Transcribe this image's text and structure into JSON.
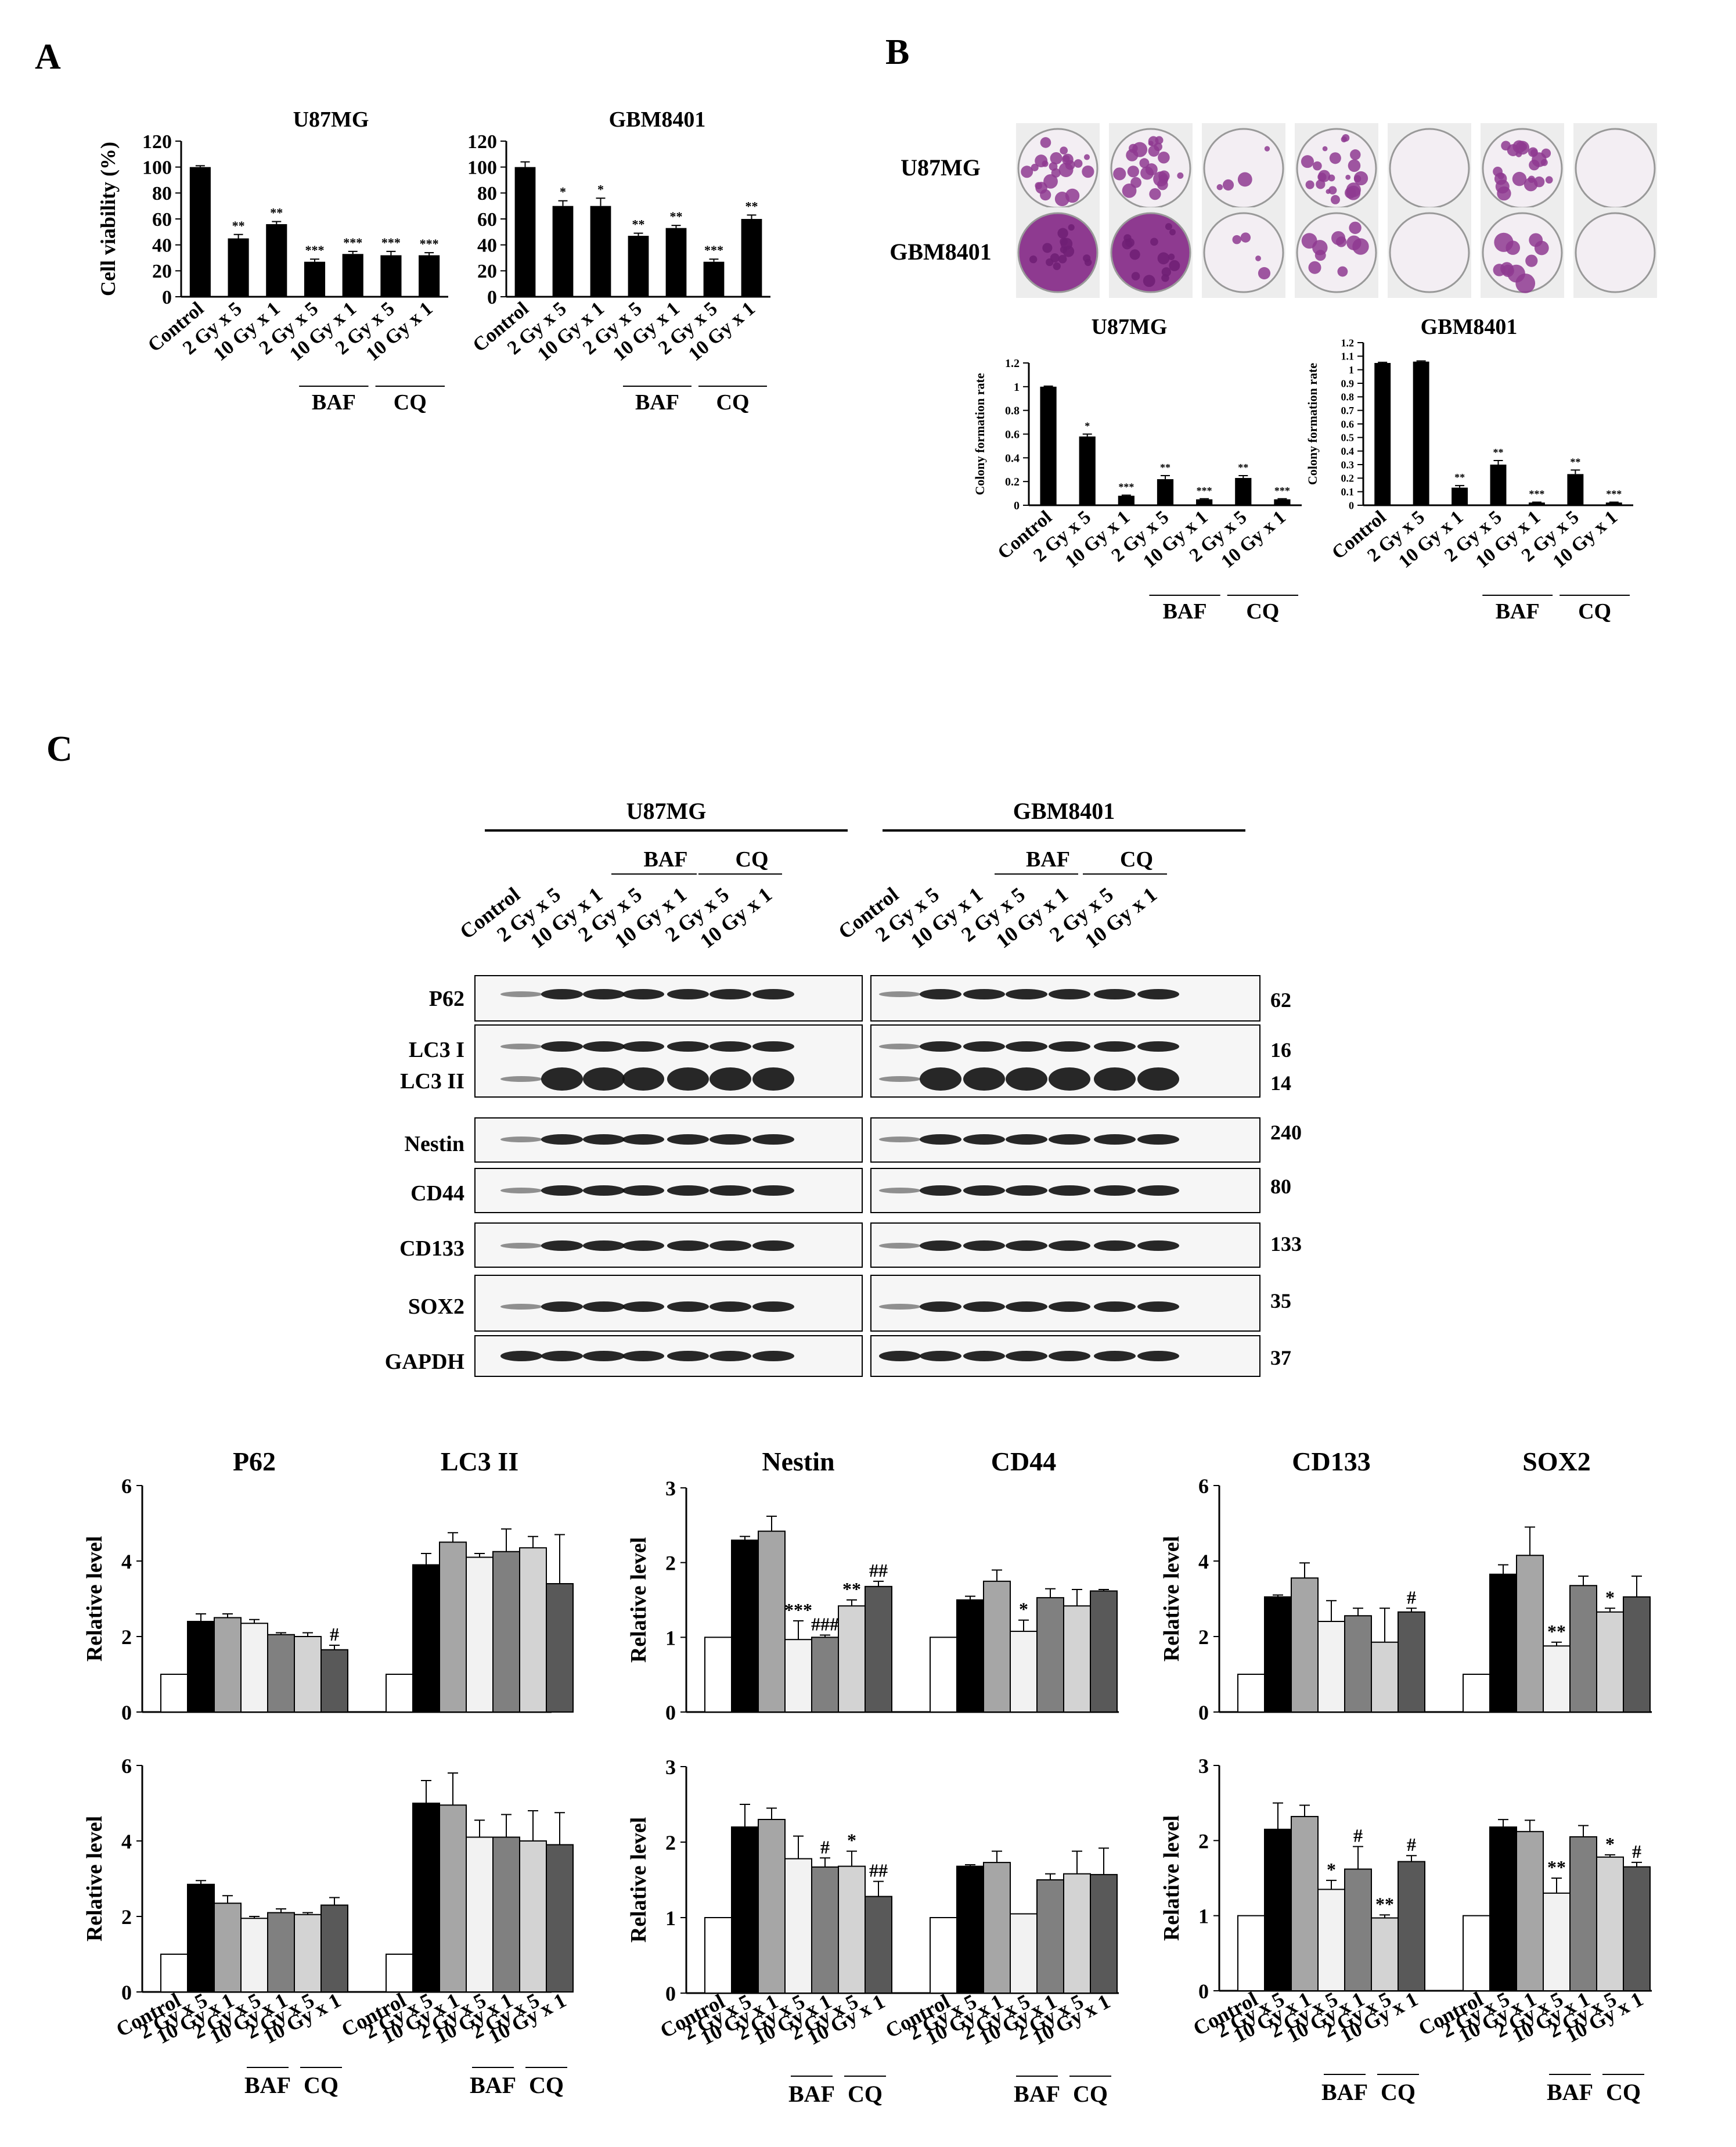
{
  "panel_labels": [
    "A",
    "B",
    "C"
  ],
  "conditions": [
    "Control",
    "2 Gy x 5",
    "10 Gy x 1",
    "2 Gy x 5",
    "10 Gy x 1",
    "2 Gy x 5",
    "10 Gy x 1"
  ],
  "groups": [
    "BAF",
    "CQ"
  ],
  "cell_lines": [
    "U87MG",
    "GBM8401"
  ],
  "panel_b_rows": [
    "U87MG",
    "GBM8401"
  ],
  "panel_b_dishes": [
    [
      "sparse",
      "sparse",
      "few",
      "sparse",
      "none",
      "sparse",
      "none"
    ],
    [
      "dense",
      "dense",
      "few",
      "colonies",
      "none",
      "colonies",
      "none"
    ]
  ],
  "western": {
    "proteins": [
      "P62",
      "LC3  I",
      "LC3 II",
      "Nestin",
      "CD44",
      "CD133",
      "SOX2",
      "GAPDH"
    ],
    "mw": [
      "62",
      "16",
      "14",
      "240",
      "80",
      "133",
      "35",
      "37"
    ]
  },
  "colors": {
    "series": [
      "#ffffff",
      "#000000",
      "#a6a6a6",
      "#f2f2f2",
      "#808080",
      "#d3d3d3",
      "#595959"
    ],
    "stain": "#8e3a90"
  },
  "chart_data": [
    {
      "id": "A1",
      "type": "bar",
      "title": "U87MG",
      "ylabel": "Cell viability (%)",
      "ylim": [
        0,
        120
      ],
      "yticks": [
        0,
        20,
        40,
        60,
        80,
        100,
        120
      ],
      "categories": [
        "Control",
        "2 Gy x 5",
        "10 Gy x 1",
        "2 Gy x 5",
        "10 Gy x 1",
        "2 Gy x 5",
        "10 Gy x 1"
      ],
      "values": [
        100,
        45,
        56,
        27,
        33,
        32,
        32
      ],
      "errors": [
        1,
        3,
        2,
        2,
        2,
        3,
        2
      ],
      "annotations": [
        "",
        "**",
        "**",
        "***",
        "***",
        "***",
        "***"
      ],
      "bar_color": "black"
    },
    {
      "id": "A2",
      "type": "bar",
      "title": "GBM8401",
      "ylabel": "",
      "ylim": [
        0,
        120
      ],
      "yticks": [
        0,
        20,
        40,
        60,
        80,
        100,
        120
      ],
      "categories": [
        "Control",
        "2 Gy x 5",
        "10 Gy x 1",
        "2 Gy x 5",
        "10 Gy x 1",
        "2 Gy x 5",
        "10 Gy x 1"
      ],
      "values": [
        100,
        70,
        70,
        47,
        53,
        27,
        60
      ],
      "errors": [
        4,
        4,
        6,
        2,
        2,
        2,
        3
      ],
      "annotations": [
        "",
        "*",
        "*",
        "**",
        "**",
        "***",
        "**"
      ],
      "bar_color": "black"
    },
    {
      "id": "B1",
      "type": "bar",
      "title": "U87MG",
      "ylabel": "Colony formation rate",
      "ylim": [
        0,
        1.2
      ],
      "yticks": [
        0,
        0.2,
        0.4,
        0.6,
        0.8,
        1.0,
        1.2
      ],
      "categories": [
        "Control",
        "2 Gy x 5",
        "10 Gy x 1",
        "2 Gy x 5",
        "10 Gy x 1",
        "2 Gy x 5",
        "10 Gy x 1"
      ],
      "values": [
        1.0,
        0.58,
        0.08,
        0.22,
        0.05,
        0.23,
        0.05
      ],
      "errors": [
        0.005,
        0.02,
        0.005,
        0.03,
        0.005,
        0.02,
        0.005
      ],
      "annotations": [
        "",
        "*",
        "***",
        "**",
        "***",
        "**",
        "***"
      ],
      "bar_color": "black"
    },
    {
      "id": "B2",
      "type": "bar",
      "title": "GBM8401",
      "ylabel": "Colony formation rate",
      "ylim": [
        0,
        1.2
      ],
      "yticks": [
        0,
        0.1,
        0.2,
        0.3,
        0.4,
        0.5,
        0.6,
        0.7,
        0.8,
        0.9,
        1.0,
        1.1,
        1.2
      ],
      "categories": [
        "Control",
        "2 Gy x 5",
        "10 Gy x 1",
        "2 Gy x 5",
        "10 Gy x 1",
        "2 Gy x 5",
        "10 Gy x 1"
      ],
      "values": [
        1.05,
        1.06,
        0.13,
        0.3,
        0.02,
        0.23,
        0.02
      ],
      "errors": [
        0.005,
        0.005,
        0.015,
        0.03,
        0.003,
        0.03,
        0.003
      ],
      "annotations": [
        "",
        "",
        "**",
        "**",
        "***",
        "**",
        "***"
      ],
      "bar_color": "black"
    },
    {
      "id": "C1",
      "type": "bar",
      "titles": [
        "P62",
        "LC3 II"
      ],
      "ylabel": "Relative  level",
      "ylim": [
        0,
        6
      ],
      "yticks": [
        0,
        2,
        4,
        6
      ],
      "series_values": [
        [
          1,
          2.4,
          2.5,
          2.35,
          2.05,
          2.0,
          1.65
        ],
        [
          1,
          3.9,
          4.5,
          4.1,
          4.25,
          4.35,
          3.4
        ]
      ],
      "series_errors": [
        [
          0,
          0.2,
          0.1,
          0.1,
          0.05,
          0.1,
          0.12
        ],
        [
          0,
          0.3,
          0.25,
          0.1,
          0.6,
          0.3,
          1.3
        ]
      ],
      "annotations": [
        [
          "",
          "",
          "",
          "",
          "",
          "",
          "#"
        ],
        [
          "",
          "",
          "",
          "",
          "",
          "",
          ""
        ]
      ]
    },
    {
      "id": "C2",
      "type": "bar",
      "titles": [
        "Nestin",
        "CD44"
      ],
      "ylabel": "Relative  level",
      "ylim": [
        0,
        3
      ],
      "yticks": [
        0,
        1,
        2,
        3
      ],
      "series_values": [
        [
          1,
          2.3,
          2.42,
          0.97,
          1.0,
          1.42,
          1.68
        ],
        [
          1,
          1.5,
          1.75,
          1.08,
          1.53,
          1.42,
          1.62
        ]
      ],
      "series_errors": [
        [
          0,
          0.05,
          0.2,
          0.25,
          0.03,
          0.08,
          0.07
        ],
        [
          0,
          0.05,
          0.15,
          0.15,
          0.12,
          0.22,
          0.02
        ]
      ],
      "annotations": [
        [
          "",
          "",
          "",
          "***",
          "###",
          "**",
          "##"
        ],
        [
          "",
          "",
          "",
          "*",
          "",
          "",
          ""
        ]
      ]
    },
    {
      "id": "C3",
      "type": "bar",
      "titles": [
        "CD133",
        "SOX2"
      ],
      "ylabel": "Relative  level",
      "ylim": [
        0,
        6
      ],
      "yticks": [
        0,
        2,
        4,
        6
      ],
      "series_values": [
        [
          1,
          3.05,
          3.55,
          2.4,
          2.55,
          1.85,
          2.65
        ],
        [
          1,
          3.65,
          4.15,
          1.75,
          3.35,
          2.65,
          3.05
        ]
      ],
      "series_errors": [
        [
          0,
          0.05,
          0.4,
          0.55,
          0.2,
          0.9,
          0.1
        ],
        [
          0,
          0.25,
          0.75,
          0.1,
          0.25,
          0.1,
          0.55
        ]
      ],
      "annotations": [
        [
          "",
          "",
          "",
          "",
          "",
          "",
          "#"
        ],
        [
          "",
          "",
          "",
          "**",
          "",
          "*",
          ""
        ]
      ]
    },
    {
      "id": "C4",
      "type": "bar",
      "titles": [
        "",
        ""
      ],
      "ylabel": "Relative  level",
      "ylim": [
        0,
        6
      ],
      "yticks": [
        0,
        2,
        4,
        6
      ],
      "series_values": [
        [
          1,
          2.85,
          2.35,
          1.95,
          2.1,
          2.05,
          2.3
        ],
        [
          1,
          5.0,
          4.95,
          4.1,
          4.1,
          4.0,
          3.9
        ]
      ],
      "series_errors": [
        [
          0,
          0.1,
          0.2,
          0.05,
          0.1,
          0.05,
          0.2
        ],
        [
          0,
          0.6,
          0.85,
          0.45,
          0.6,
          0.8,
          0.85
        ]
      ],
      "annotations": [
        [
          "",
          "",
          "",
          "",
          "",
          "",
          ""
        ],
        [
          "",
          "",
          "",
          "",
          "",
          "",
          ""
        ]
      ]
    },
    {
      "id": "C5",
      "type": "bar",
      "titles": [
        "",
        ""
      ],
      "ylabel": "Relative  level",
      "ylim": [
        0,
        3
      ],
      "yticks": [
        0,
        1,
        2,
        3
      ],
      "series_values": [
        [
          1,
          2.2,
          2.3,
          1.78,
          1.67,
          1.68,
          1.28
        ],
        [
          1,
          1.68,
          1.73,
          1.05,
          1.5,
          1.58,
          1.57
        ]
      ],
      "series_errors": [
        [
          0,
          0.3,
          0.15,
          0.3,
          0.12,
          0.2,
          0.2
        ],
        [
          0,
          0.02,
          0.15,
          0,
          0.08,
          0.3,
          0.35
        ]
      ],
      "annotations": [
        [
          "",
          "",
          "",
          "",
          "#",
          "*",
          "##"
        ],
        [
          "",
          "",
          "",
          "",
          "",
          "",
          ""
        ]
      ]
    },
    {
      "id": "C6",
      "type": "bar",
      "titles": [
        "",
        ""
      ],
      "ylabel": "Relative  level",
      "ylim": [
        0,
        3
      ],
      "yticks": [
        0,
        1,
        2,
        3
      ],
      "series_values": [
        [
          1,
          2.15,
          2.32,
          1.35,
          1.62,
          0.97,
          1.72
        ],
        [
          1,
          2.18,
          2.12,
          1.3,
          2.05,
          1.78,
          1.65
        ]
      ],
      "series_errors": [
        [
          0,
          0.35,
          0.15,
          0.12,
          0.3,
          0.04,
          0.08
        ],
        [
          0,
          0.1,
          0.15,
          0.2,
          0.15,
          0.03,
          0.06
        ]
      ],
      "annotations": [
        [
          "",
          "",
          "",
          "*",
          "#",
          "**",
          "#"
        ],
        [
          "",
          "",
          "",
          "**",
          "",
          "*",
          "#"
        ]
      ]
    }
  ]
}
